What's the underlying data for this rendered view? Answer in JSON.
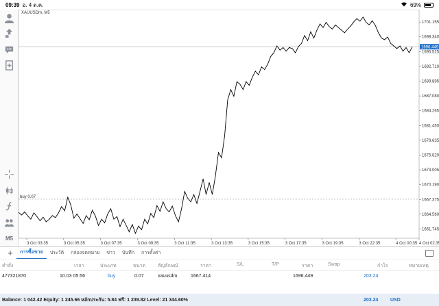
{
  "status_bar": {
    "time": "09:39",
    "date": "อ. 4 ต.ค.",
    "battery": "69%"
  },
  "chart": {
    "symbol_label": "XAUUSDm, M5",
    "price_label": "1696.449",
    "buy_line_label": "buy 0.07",
    "price_ticks": [
      "1701.155",
      "1698.340",
      "1695.525",
      "1692.710",
      "1689.895",
      "1687.080",
      "1684.265",
      "1681.450",
      "1678.635",
      "1675.820",
      "1673.005",
      "1670.190",
      "1667.375",
      "1664.560",
      "1661.745"
    ],
    "time_ticks": [
      "3 Oct 03:35",
      "3 Oct 05:35",
      "3 Oct 07:35",
      "3 Oct 09:35",
      "3 Oct 11:35",
      "3 Oct 13:35",
      "3 Oct 15:35",
      "3 Oct 17:35",
      "3 Oct 19:35",
      "3 Oct 22:35",
      "4 Oct 00:35",
      "4 Oct 02:35"
    ],
    "colors": {
      "line": "#000000",
      "price_badge": "#1f6fc8",
      "buy_line": "#9a9a9a"
    }
  },
  "chart_data": {
    "type": "line",
    "title": "XAUUSDm, M5",
    "ylim": [
      1660.5,
      1703.0
    ],
    "x_ticks": [
      "3 Oct 03:35",
      "3 Oct 05:35",
      "3 Oct 07:35",
      "3 Oct 09:35",
      "3 Oct 11:35",
      "3 Oct 13:35",
      "3 Oct 15:35",
      "3 Oct 17:35",
      "3 Oct 19:35",
      "3 Oct 22:35",
      "4 Oct 00:35",
      "4 Oct 02:35"
    ],
    "series": [
      {
        "values": [
          1664.9,
          1664.4,
          1665.0,
          1664.2,
          1663.6,
          1664.8,
          1664.1,
          1663.3,
          1664.0,
          1663.1,
          1663.6,
          1664.3,
          1663.9,
          1664.8,
          1666.0,
          1665.2,
          1667.8,
          1666.3,
          1663.8,
          1664.6,
          1663.7,
          1662.8,
          1664.3,
          1663.5,
          1665.3,
          1664.2,
          1662.4,
          1663.6,
          1662.9,
          1664.6,
          1665.6,
          1663.6,
          1664.1,
          1662.2,
          1663.6,
          1662.4,
          1661.2,
          1662.6,
          1660.9,
          1662.3,
          1661.6,
          1663.6,
          1662.7,
          1664.7,
          1663.9,
          1666.2,
          1665.1,
          1666.9,
          1665.6,
          1665.0,
          1666.1,
          1664.3,
          1663.1,
          1665.6,
          1668.9,
          1667.6,
          1666.9,
          1668.3,
          1666.6,
          1668.9,
          1671.3,
          1668.3,
          1670.6,
          1668.3,
          1671.8,
          1676.3,
          1675.3,
          1679.5,
          1686.3,
          1688.3,
          1687.0,
          1689.8,
          1689.3,
          1688.3,
          1689.8,
          1689.1,
          1690.6,
          1691.8,
          1691.1,
          1692.6,
          1692.1,
          1693.1,
          1694.6,
          1695.3,
          1696.6,
          1695.8,
          1696.3,
          1695.6,
          1696.3,
          1696.1,
          1695.3,
          1696.5,
          1697.1,
          1698.6,
          1697.6,
          1699.3,
          1698.1,
          1699.6,
          1700.8,
          1700.1,
          1701.1,
          1700.3,
          1699.8,
          1700.6,
          1700.1,
          1699.6,
          1699.1,
          1699.8,
          1700.4,
          1701.2,
          1701.8,
          1701.3,
          1702.1,
          1701.1,
          1700.6,
          1701.4,
          1700.5,
          1699.1,
          1698.1,
          1697.8,
          1698.3,
          1697.1,
          1696.6,
          1696.1,
          1696.6,
          1695.6,
          1696.3,
          1695.3,
          1696.4
        ]
      }
    ],
    "current_price": 1696.449,
    "buy_level": 1667.414
  },
  "bottom_panel": {
    "tabs": [
      "การซื้อขาย",
      "ประวัติ",
      "กล่องจดหมาย",
      "ข่าว",
      "บันทึก",
      "การตั้งค่า"
    ],
    "headers": {
      "order": "คำสั่ง",
      "time": "เวลา",
      "type": "ประเภท",
      "volume": "ขนาด",
      "symbol": "สัญลักษณ์",
      "price": "ราคา",
      "sl": "S/L",
      "tp": "T/P",
      "current_price": "ราคา",
      "swap": "Swap",
      "profit": "กำไร",
      "comment": "หมายเหตุ"
    },
    "row": {
      "order": "477321870",
      "time": "10.03 05:56",
      "type": "buy",
      "volume": "0.07",
      "symbol": "xauusdm",
      "price": "1667.414",
      "current_price": "1696.449",
      "profit": "203.24"
    },
    "balance": {
      "text": "Balance: 1 042.42 Equity: 1 245.66 หลักประกัน: 5.84 ฟรี: 1 239.82 Level: 21 344.60%",
      "profit": "203.24",
      "currency": "USD"
    }
  },
  "toolbar": {
    "timeframe": "M5"
  }
}
